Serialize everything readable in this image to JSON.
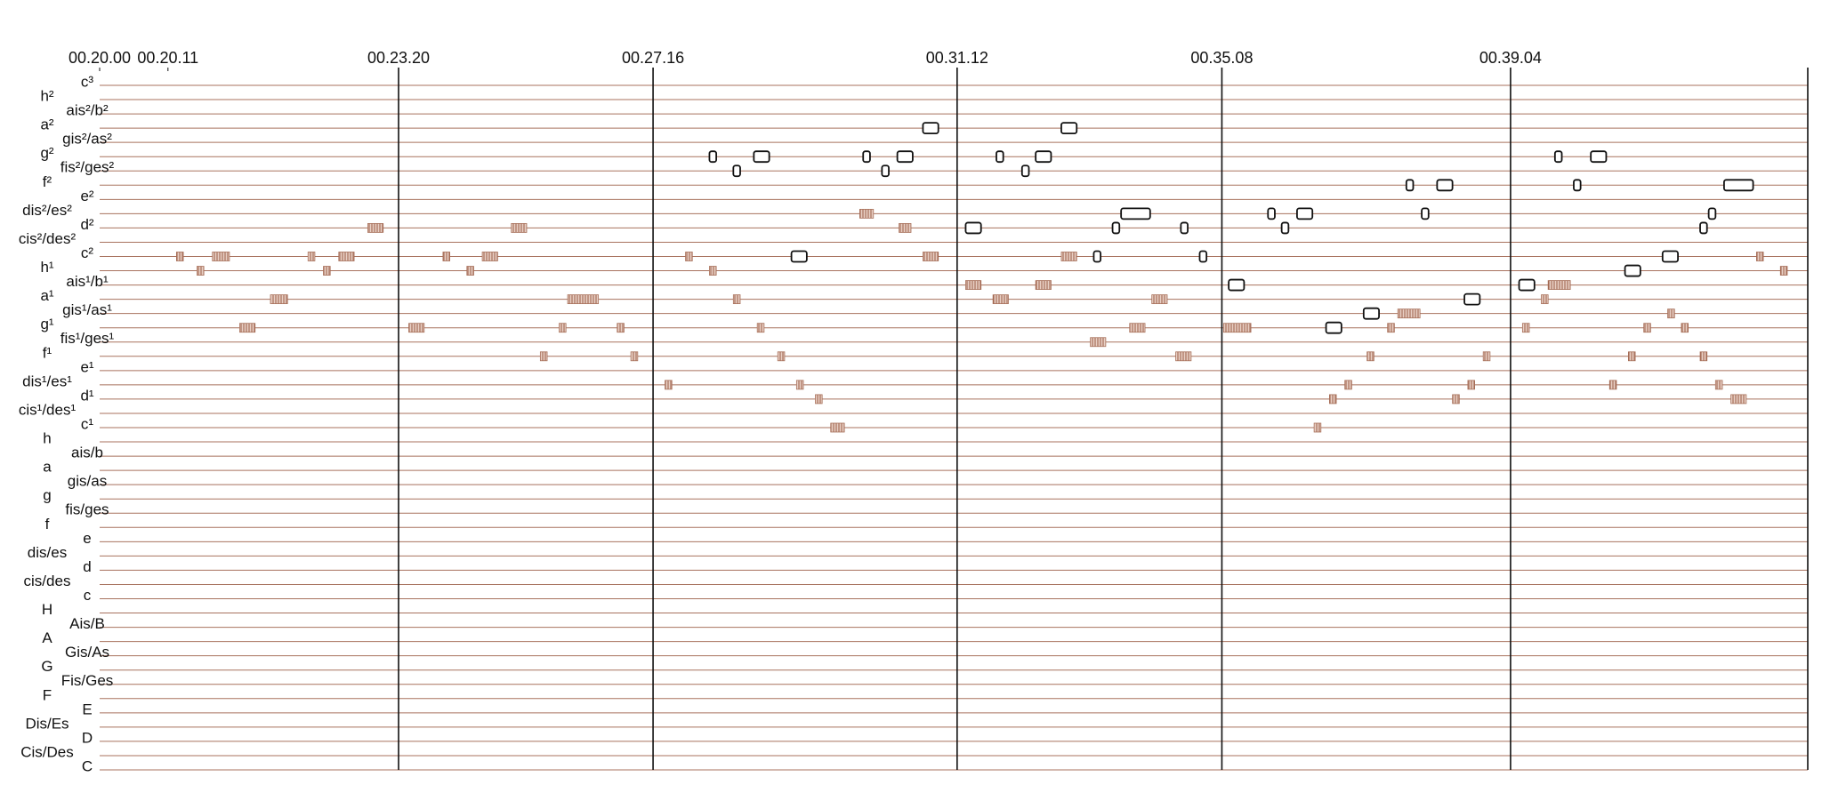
{
  "chart_data": {
    "type": "piano-roll",
    "xlim": [
      0,
      100
    ],
    "xticks": [
      {
        "value": 0,
        "label": "00.20.00"
      },
      {
        "value": 4.0,
        "label": "00.20.11"
      },
      {
        "value": 17.5,
        "label": "00.23.20"
      },
      {
        "value": 32.4,
        "label": "00.27.16"
      },
      {
        "value": 50.2,
        "label": "00.31.12"
      },
      {
        "value": 65.7,
        "label": "00.35.08"
      },
      {
        "value": 82.6,
        "label": "00.39.04"
      }
    ],
    "barlines": [
      17.5,
      32.4,
      50.2,
      65.7,
      82.6,
      100
    ],
    "y_categories": [
      "c³",
      "h²",
      "ais²/b²",
      "a²",
      "gis²/as²",
      "g²",
      "fis²/ges²",
      "f²",
      "e²",
      "dis²/es²",
      "d²",
      "cis²/des²",
      "c²",
      "h¹",
      "ais¹/b¹",
      "a¹",
      "gis¹/as¹",
      "g¹",
      "fis¹/ges¹",
      "f¹",
      "e¹",
      "dis¹/es¹",
      "d¹",
      "cis¹/des¹",
      "c¹",
      "h",
      "ais/b",
      "a",
      "gis/as",
      "g",
      "fis/ges",
      "f",
      "e",
      "dis/es",
      "d",
      "cis/des",
      "c",
      "H",
      "Ais/B",
      "A",
      "Gis/As",
      "G",
      "Fis/Ges",
      "F",
      "E",
      "Dis/Es",
      "D",
      "Cis/Des",
      "C"
    ],
    "grid": true,
    "grid_color": "#a8725e",
    "barline_color": "#111111",
    "series": [
      {
        "color": "#a8705a",
        "marker": "hatched",
        "x": [
          4.5,
          6.6,
          5.7,
          10.0,
          8.2,
          12.2,
          13.1,
          14.0,
          15.7,
          18.1,
          20.1,
          21.5,
          22.4,
          24.1,
          25.8,
          27.4,
          26.9,
          30.3,
          31.1,
          33.1,
          34.3,
          35.7,
          37.1,
          38.5,
          39.7,
          40.8,
          41.9,
          42.8,
          44.5,
          46.8,
          48.2,
          50.7,
          52.3,
          54.8,
          56.3,
          58.0,
          60.3,
          61.6,
          63.0,
          65.8,
          71.1,
          72.0,
          72.9,
          74.2,
          75.4,
          76.0,
          79.2,
          80.1,
          81.0,
          83.3,
          84.4,
          84.8,
          88.4,
          89.5,
          90.4,
          91.8,
          92.6,
          93.7,
          94.6,
          95.5,
          97.0,
          98.4
        ],
        "widths": [
          0.4,
          1.0,
          0.4,
          1.0,
          0.9,
          0.4,
          0.4,
          0.9,
          0.9,
          0.9,
          0.4,
          0.4,
          0.9,
          0.9,
          0.4,
          1.8,
          0.4,
          0.4,
          0.4,
          0.4,
          0.4,
          0.4,
          0.4,
          0.4,
          0.4,
          0.4,
          0.4,
          0.8,
          0.8,
          0.7,
          0.9,
          0.9,
          0.9,
          0.9,
          0.9,
          0.9,
          0.9,
          0.9,
          0.9,
          1.6,
          0.4,
          0.4,
          0.4,
          0.4,
          0.4,
          1.3,
          0.4,
          0.4,
          0.4,
          0.4,
          0.4,
          1.3,
          0.4,
          0.4,
          0.4,
          0.4,
          0.4,
          0.4,
          0.4,
          0.9,
          0.4,
          0.4
        ],
        "values": [
          12,
          12,
          13,
          15,
          17,
          12,
          13,
          12,
          10,
          17,
          12,
          13,
          12,
          10,
          19,
          15,
          17,
          17,
          19,
          21,
          12,
          13,
          15,
          17,
          19,
          21,
          22,
          24,
          9,
          10,
          12,
          14,
          15,
          14,
          12,
          18,
          17,
          15,
          19,
          17,
          24,
          22,
          21,
          19,
          17,
          16,
          22,
          21,
          19,
          17,
          15,
          14,
          21,
          19,
          17,
          16,
          17,
          19,
          21,
          22,
          12,
          13
        ]
      },
      {
        "color": "#111111",
        "marker": "outline",
        "x": [
          35.7,
          37.1,
          38.3,
          40.5,
          44.7,
          45.8,
          46.7,
          48.2,
          50.7,
          52.5,
          54.0,
          54.8,
          56.3,
          58.2,
          59.3,
          59.8,
          63.3,
          64.4,
          66.1,
          68.4,
          69.2,
          70.1,
          71.8,
          74.0,
          76.5,
          77.4,
          78.3,
          79.9,
          83.1,
          85.2,
          86.3,
          87.3,
          89.3,
          91.5,
          93.7,
          94.2,
          95.1
        ],
        "widths": [
          0.4,
          0.4,
          0.9,
          0.9,
          0.4,
          0.4,
          0.9,
          0.9,
          0.9,
          0.4,
          0.4,
          0.9,
          0.9,
          0.4,
          0.4,
          1.7,
          0.4,
          0.4,
          0.9,
          0.4,
          0.4,
          0.9,
          0.9,
          0.9,
          0.4,
          0.4,
          0.9,
          0.9,
          0.9,
          0.4,
          0.4,
          0.9,
          0.9,
          0.9,
          0.4,
          0.4,
          1.7
        ],
        "values": [
          5,
          6,
          5,
          12,
          5,
          6,
          5,
          3,
          10,
          5,
          6,
          5,
          3,
          12,
          10,
          9,
          10,
          12,
          14,
          9,
          10,
          9,
          17,
          16,
          7,
          9,
          7,
          15,
          14,
          5,
          7,
          5,
          13,
          12,
          10,
          9,
          7
        ]
      }
    ]
  }
}
